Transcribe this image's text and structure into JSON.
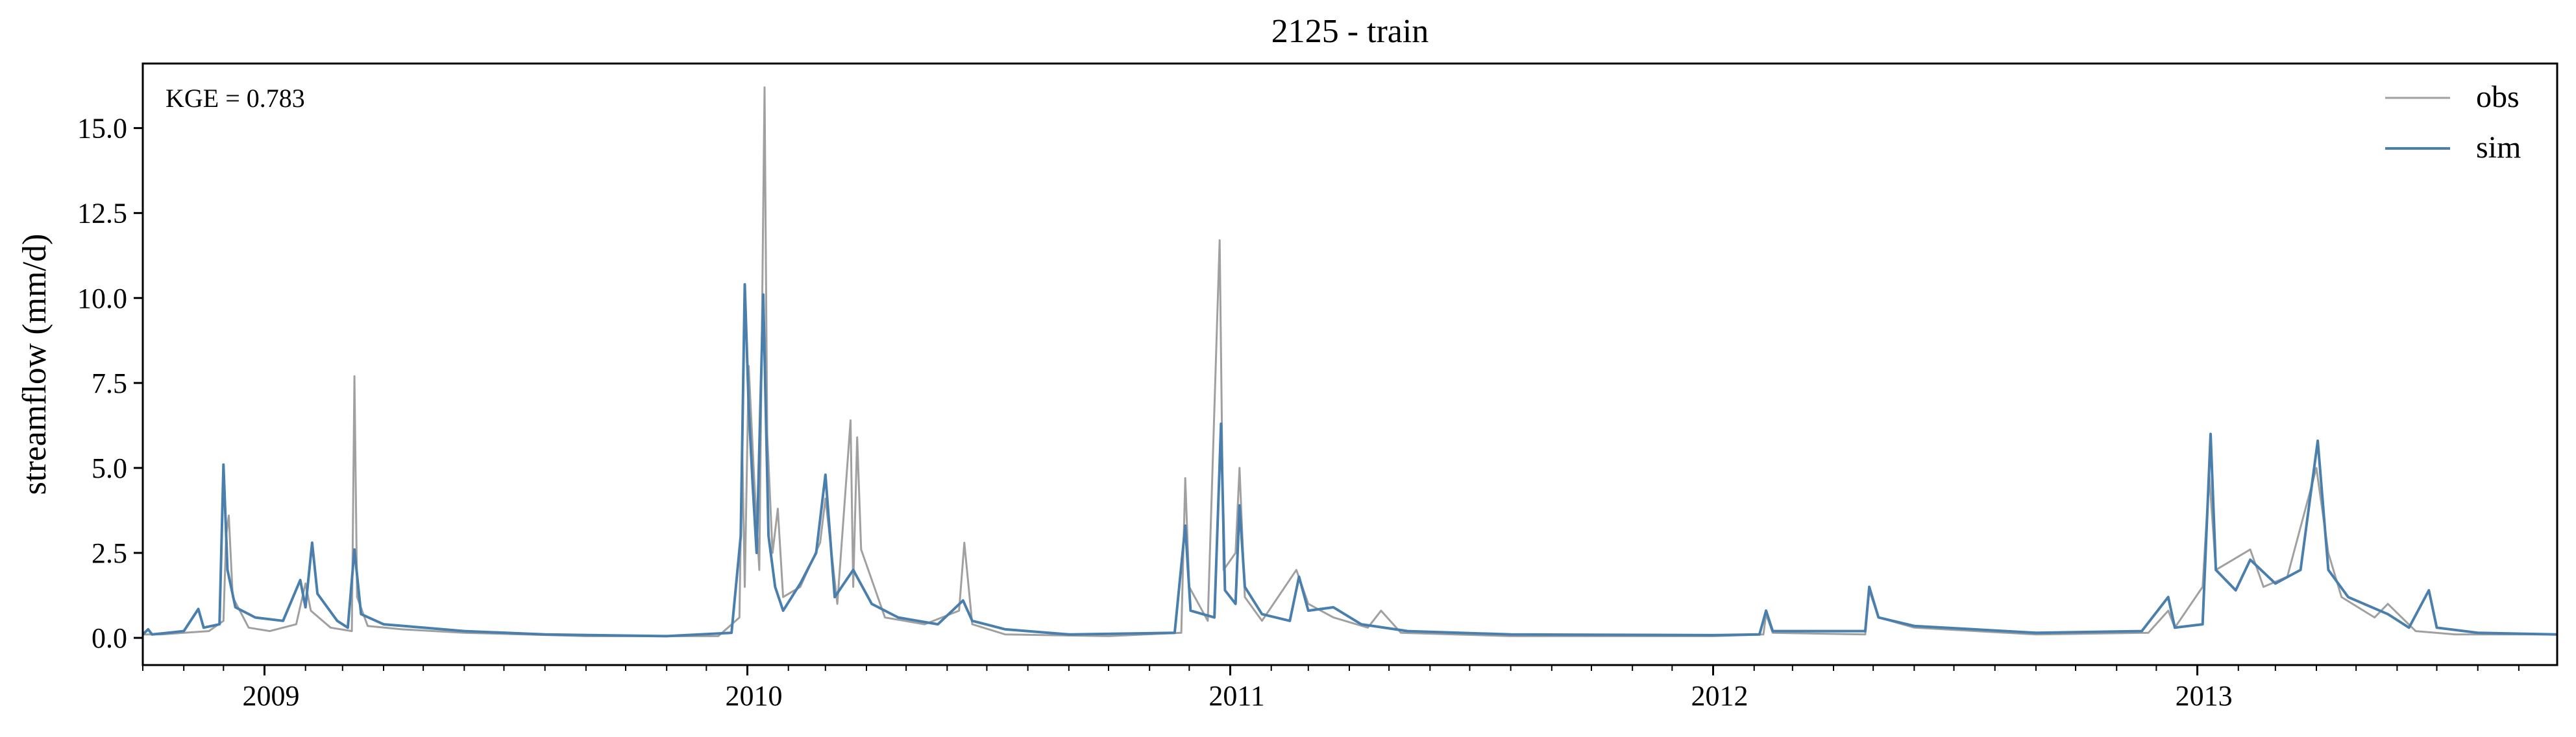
{
  "chart_data": {
    "type": "line",
    "title": "2125 - train",
    "xlabel": "",
    "ylabel": "streamflow (mm/d)",
    "annotation": "KGE = 0.783",
    "x_range": [
      "2008-10-01",
      "2013-09-30"
    ],
    "ylim": [
      -0.8,
      16.9
    ],
    "yticks": [
      0.0,
      2.5,
      5.0,
      7.5,
      10.0,
      12.5,
      15.0
    ],
    "ytick_labels": [
      "0.0",
      "2.5",
      "5.0",
      "7.5",
      "10.0",
      "12.5",
      "15.0"
    ],
    "xtick_labels": [
      "2009",
      "2010",
      "2011",
      "2012",
      "2013"
    ],
    "xtick_dates": [
      "2009-01-01",
      "2010-01-01",
      "2011-01-01",
      "2012-01-01",
      "2013-01-01"
    ],
    "grid": false,
    "legend": "top-right",
    "series": [
      {
        "name": "obs",
        "color": "#a0a0a0",
        "points": [
          [
            "2008-10-01",
            0.1
          ],
          [
            "2008-10-15",
            0.1
          ],
          [
            "2008-11-01",
            0.15
          ],
          [
            "2008-11-20",
            0.2
          ],
          [
            "2008-12-01",
            0.5
          ],
          [
            "2008-12-03",
            3.0
          ],
          [
            "2008-12-05",
            3.6
          ],
          [
            "2008-12-08",
            1.2
          ],
          [
            "2008-12-20",
            0.3
          ],
          [
            "2009-01-05",
            0.2
          ],
          [
            "2009-01-25",
            0.4
          ],
          [
            "2009-02-01",
            1.6
          ],
          [
            "2009-02-05",
            0.8
          ],
          [
            "2009-02-20",
            0.3
          ],
          [
            "2009-03-08",
            0.2
          ],
          [
            "2009-03-10",
            7.7
          ],
          [
            "2009-03-12",
            1.2
          ],
          [
            "2009-03-20",
            0.35
          ],
          [
            "2009-04-15",
            0.25
          ],
          [
            "2009-06-01",
            0.15
          ],
          [
            "2009-09-01",
            0.05
          ],
          [
            "2009-12-10",
            0.05
          ],
          [
            "2009-12-26",
            0.6
          ],
          [
            "2009-12-28",
            5.8
          ],
          [
            "2009-12-30",
            1.5
          ],
          [
            "2010-01-02",
            8.0
          ],
          [
            "2010-01-06",
            4.8
          ],
          [
            "2010-01-10",
            2.0
          ],
          [
            "2010-01-14",
            16.2
          ],
          [
            "2010-01-16",
            6.0
          ],
          [
            "2010-01-20",
            2.5
          ],
          [
            "2010-01-24",
            3.8
          ],
          [
            "2010-01-28",
            1.2
          ],
          [
            "2010-02-10",
            1.5
          ],
          [
            "2010-02-25",
            2.8
          ],
          [
            "2010-03-01",
            4.1
          ],
          [
            "2010-03-10",
            1.0
          ],
          [
            "2010-03-20",
            6.4
          ],
          [
            "2010-03-22",
            1.5
          ],
          [
            "2010-03-25",
            5.9
          ],
          [
            "2010-03-28",
            2.6
          ],
          [
            "2010-04-15",
            0.6
          ],
          [
            "2010-05-15",
            0.4
          ],
          [
            "2010-06-10",
            0.8
          ],
          [
            "2010-06-14",
            2.8
          ],
          [
            "2010-06-20",
            0.4
          ],
          [
            "2010-07-15",
            0.1
          ],
          [
            "2010-10-01",
            0.05
          ],
          [
            "2010-11-25",
            0.15
          ],
          [
            "2010-11-28",
            4.7
          ],
          [
            "2010-12-01",
            1.5
          ],
          [
            "2010-12-15",
            0.5
          ],
          [
            "2010-12-24",
            11.7
          ],
          [
            "2010-12-27",
            2.0
          ],
          [
            "2011-01-05",
            2.5
          ],
          [
            "2011-01-08",
            5.0
          ],
          [
            "2011-01-12",
            1.2
          ],
          [
            "2011-01-25",
            0.5
          ],
          [
            "2011-02-20",
            2.0
          ],
          [
            "2011-03-01",
            1.0
          ],
          [
            "2011-03-20",
            0.6
          ],
          [
            "2011-04-15",
            0.3
          ],
          [
            "2011-04-25",
            0.8
          ],
          [
            "2011-05-10",
            0.15
          ],
          [
            "2011-08-01",
            0.05
          ],
          [
            "2012-01-01",
            0.05
          ],
          [
            "2012-02-08",
            0.1
          ],
          [
            "2012-02-10",
            0.7
          ],
          [
            "2012-02-15",
            0.15
          ],
          [
            "2012-04-25",
            0.1
          ],
          [
            "2012-04-28",
            1.4
          ],
          [
            "2012-05-05",
            0.6
          ],
          [
            "2012-06-01",
            0.3
          ],
          [
            "2012-09-01",
            0.1
          ],
          [
            "2012-11-25",
            0.15
          ],
          [
            "2012-12-10",
            0.8
          ],
          [
            "2012-12-15",
            0.3
          ],
          [
            "2013-01-05",
            1.5
          ],
          [
            "2013-01-10",
            4.8
          ],
          [
            "2013-01-15",
            2.0
          ],
          [
            "2013-02-10",
            2.6
          ],
          [
            "2013-02-20",
            1.5
          ],
          [
            "2013-03-10",
            1.8
          ],
          [
            "2013-04-01",
            5.0
          ],
          [
            "2013-04-10",
            2.5
          ],
          [
            "2013-04-20",
            1.2
          ],
          [
            "2013-05-15",
            0.6
          ],
          [
            "2013-05-25",
            1.0
          ],
          [
            "2013-06-15",
            0.2
          ],
          [
            "2013-07-15",
            0.1
          ],
          [
            "2013-09-30",
            0.1
          ]
        ]
      },
      {
        "name": "sim",
        "color": "#4a7fad",
        "points": [
          [
            "2008-10-01",
            0.1
          ],
          [
            "2008-10-05",
            0.25
          ],
          [
            "2008-10-08",
            0.1
          ],
          [
            "2008-10-20",
            0.15
          ],
          [
            "2008-11-01",
            0.2
          ],
          [
            "2008-11-12",
            0.85
          ],
          [
            "2008-11-16",
            0.3
          ],
          [
            "2008-11-28",
            0.4
          ],
          [
            "2008-12-01",
            5.1
          ],
          [
            "2008-12-04",
            2.0
          ],
          [
            "2008-12-10",
            0.9
          ],
          [
            "2008-12-25",
            0.6
          ],
          [
            "2009-01-15",
            0.5
          ],
          [
            "2009-01-28",
            1.7
          ],
          [
            "2009-02-01",
            0.9
          ],
          [
            "2009-02-06",
            2.8
          ],
          [
            "2009-02-10",
            1.3
          ],
          [
            "2009-02-25",
            0.5
          ],
          [
            "2009-03-05",
            0.3
          ],
          [
            "2009-03-10",
            2.6
          ],
          [
            "2009-03-15",
            0.7
          ],
          [
            "2009-04-01",
            0.4
          ],
          [
            "2009-05-01",
            0.3
          ],
          [
            "2009-06-01",
            0.2
          ],
          [
            "2009-08-01",
            0.1
          ],
          [
            "2009-11-01",
            0.05
          ],
          [
            "2009-12-20",
            0.15
          ],
          [
            "2009-12-27",
            3.0
          ],
          [
            "2009-12-30",
            10.4
          ],
          [
            "2010-01-02",
            6.8
          ],
          [
            "2010-01-05",
            4.5
          ],
          [
            "2010-01-08",
            2.5
          ],
          [
            "2010-01-13",
            10.1
          ],
          [
            "2010-01-17",
            3.0
          ],
          [
            "2010-01-22",
            1.5
          ],
          [
            "2010-01-28",
            0.8
          ],
          [
            "2010-02-10",
            1.6
          ],
          [
            "2010-02-22",
            2.5
          ],
          [
            "2010-03-01",
            4.8
          ],
          [
            "2010-03-08",
            1.2
          ],
          [
            "2010-03-22",
            2.0
          ],
          [
            "2010-04-05",
            1.0
          ],
          [
            "2010-04-25",
            0.6
          ],
          [
            "2010-05-25",
            0.4
          ],
          [
            "2010-06-13",
            1.1
          ],
          [
            "2010-06-20",
            0.5
          ],
          [
            "2010-07-15",
            0.25
          ],
          [
            "2010-09-01",
            0.1
          ],
          [
            "2010-11-20",
            0.15
          ],
          [
            "2010-11-28",
            3.3
          ],
          [
            "2010-12-02",
            0.8
          ],
          [
            "2010-12-20",
            0.6
          ],
          [
            "2010-12-25",
            6.3
          ],
          [
            "2010-12-28",
            1.4
          ],
          [
            "2011-01-05",
            1.0
          ],
          [
            "2011-01-08",
            3.9
          ],
          [
            "2011-01-12",
            1.5
          ],
          [
            "2011-01-25",
            0.7
          ],
          [
            "2011-02-15",
            0.5
          ],
          [
            "2011-02-22",
            1.8
          ],
          [
            "2011-03-01",
            0.8
          ],
          [
            "2011-03-20",
            0.9
          ],
          [
            "2011-04-10",
            0.4
          ],
          [
            "2011-05-15",
            0.2
          ],
          [
            "2011-08-01",
            0.1
          ],
          [
            "2012-01-01",
            0.08
          ],
          [
            "2012-02-05",
            0.1
          ],
          [
            "2012-02-10",
            0.8
          ],
          [
            "2012-02-15",
            0.2
          ],
          [
            "2012-04-25",
            0.2
          ],
          [
            "2012-04-28",
            1.5
          ],
          [
            "2012-05-05",
            0.6
          ],
          [
            "2012-06-01",
            0.35
          ],
          [
            "2012-09-01",
            0.15
          ],
          [
            "2012-11-20",
            0.2
          ],
          [
            "2012-12-10",
            1.2
          ],
          [
            "2012-12-15",
            0.3
          ],
          [
            "2013-01-05",
            0.4
          ],
          [
            "2013-01-11",
            6.0
          ],
          [
            "2013-01-15",
            2.0
          ],
          [
            "2013-01-30",
            1.4
          ],
          [
            "2013-02-10",
            2.3
          ],
          [
            "2013-03-01",
            1.6
          ],
          [
            "2013-03-20",
            2.0
          ],
          [
            "2013-04-02",
            5.8
          ],
          [
            "2013-04-10",
            2.0
          ],
          [
            "2013-04-25",
            1.2
          ],
          [
            "2013-05-25",
            0.7
          ],
          [
            "2013-06-10",
            0.3
          ],
          [
            "2013-06-25",
            1.4
          ],
          [
            "2013-07-01",
            0.3
          ],
          [
            "2013-08-01",
            0.15
          ],
          [
            "2013-09-30",
            0.1
          ]
        ]
      }
    ]
  }
}
